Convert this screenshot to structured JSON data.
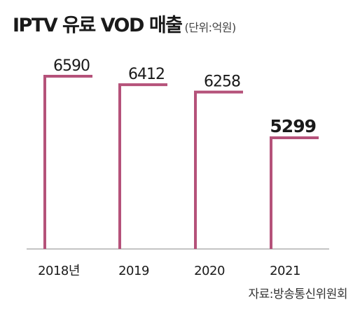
{
  "title": "IPTV 유료 VOD 매출",
  "unit": "(단위:억원)",
  "source": "자료:방송통신위원회",
  "colors": {
    "bar": "#b5527a",
    "axis": "#b0b0b0",
    "text": "#1a1a1a"
  },
  "chart_data": {
    "type": "bar",
    "title": "IPTV 유료 VOD 매출",
    "unit": "(단위:억원)",
    "categories": [
      "2018년",
      "2019",
      "2020",
      "2021"
    ],
    "values": [
      6590,
      6412,
      6258,
      5299
    ],
    "value_labels": [
      "6590",
      "6412",
      "6258",
      "5299"
    ],
    "highlight_index": 3,
    "grid": false,
    "legend": "none"
  }
}
